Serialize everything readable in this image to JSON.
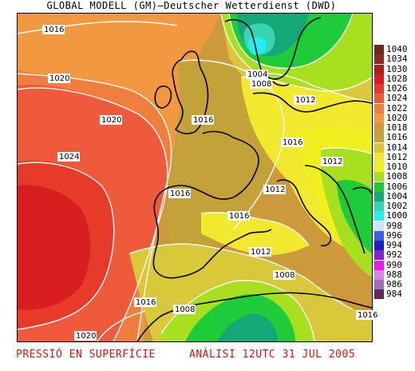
{
  "header": {
    "title": "GLOBAL MODELL (GM)—Deutscher Wetterdienst (DWD)"
  },
  "footer": {
    "left_text": "PRESSIÓ EN SUPERFÍCIE",
    "right_text": "ANÀLISI 12UTC 31 JUL 2005"
  },
  "legend": [
    {
      "label": "1040",
      "color": "#6e2a14"
    },
    {
      "label": "1034",
      "color": "#8c2a1c"
    },
    {
      "label": "1030",
      "color": "#b01c1c"
    },
    {
      "label": "1028",
      "color": "#d81e1e"
    },
    {
      "label": "1026",
      "color": "#e83a2a"
    },
    {
      "label": "1024",
      "color": "#f05a3c"
    },
    {
      "label": "1022",
      "color": "#f07e3e"
    },
    {
      "label": "1020",
      "color": "#f29840"
    },
    {
      "label": "1018",
      "color": "#cc9a3a"
    },
    {
      "label": "1016",
      "color": "#c4a23a"
    },
    {
      "label": "1014",
      "color": "#d8c83a"
    },
    {
      "label": "1012",
      "color": "#f2e82e"
    },
    {
      "label": "1010",
      "color": "#f0f020"
    },
    {
      "label": "1008",
      "color": "#a8e020"
    },
    {
      "label": "1006",
      "color": "#1ecc3a"
    },
    {
      "label": "1004",
      "color": "#14a878"
    },
    {
      "label": "1002",
      "color": "#38d4b4"
    },
    {
      "label": "1000",
      "color": "#22eef4"
    },
    {
      "label": "998",
      "color": "#c8e8f8"
    },
    {
      "label": "996",
      "color": "#3c5cf2"
    },
    {
      "label": "994",
      "color": "#1e1ec8"
    },
    {
      "label": "992",
      "color": "#7e28c8"
    },
    {
      "label": "990",
      "color": "#f018f0"
    },
    {
      "label": "988",
      "color": "#d884e8"
    },
    {
      "label": "986",
      "color": "#a46cb4"
    },
    {
      "label": "984",
      "color": "#5c2a58"
    }
  ],
  "isobar_labels": [
    "1016",
    "1020",
    "1020",
    "1024",
    "1016",
    "1016",
    "1016",
    "1016",
    "1016",
    "1004",
    "1008",
    "1012",
    "1012",
    "1012",
    "1012",
    "1008",
    "1008",
    "1020",
    "1016"
  ]
}
